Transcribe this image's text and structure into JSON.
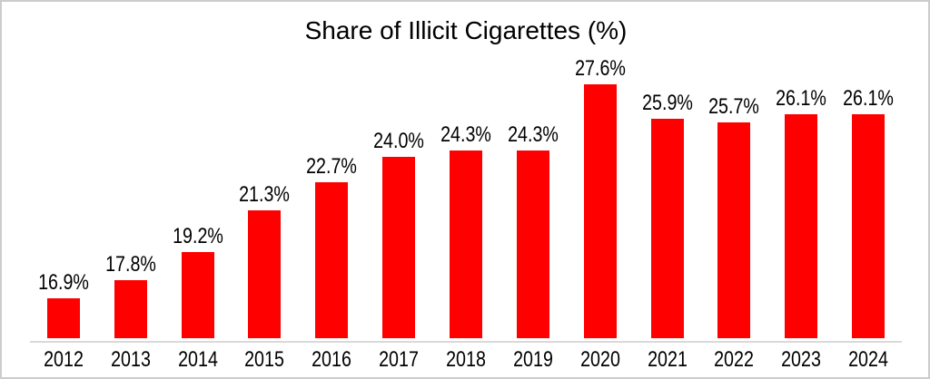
{
  "chart_data": {
    "type": "bar",
    "title": "Share of Illicit Cigarettes (%)",
    "categories": [
      "2012",
      "2013",
      "2014",
      "2015",
      "2016",
      "2017",
      "2018",
      "2019",
      "2020",
      "2021",
      "2022",
      "2023",
      "2024"
    ],
    "values": [
      16.9,
      17.8,
      19.2,
      21.3,
      22.7,
      24.0,
      24.3,
      24.3,
      27.6,
      25.9,
      25.7,
      26.1,
      26.1
    ],
    "labels": [
      "16.9%",
      "17.8%",
      "19.2%",
      "21.3%",
      "22.7%",
      "24.0%",
      "24.3%",
      "24.3%",
      "27.6%",
      "25.9%",
      "25.7%",
      "26.1%",
      "26.1%"
    ],
    "xlabel": "",
    "ylabel": "",
    "ylim": [
      14.9,
      28.2
    ],
    "grid": false,
    "legend": "none",
    "bar_color": "#ff0000",
    "axis_line_color": "#d9d9d9",
    "text_color": "#000000",
    "background_color": "#ffffff",
    "border_color": "#cccccc"
  }
}
